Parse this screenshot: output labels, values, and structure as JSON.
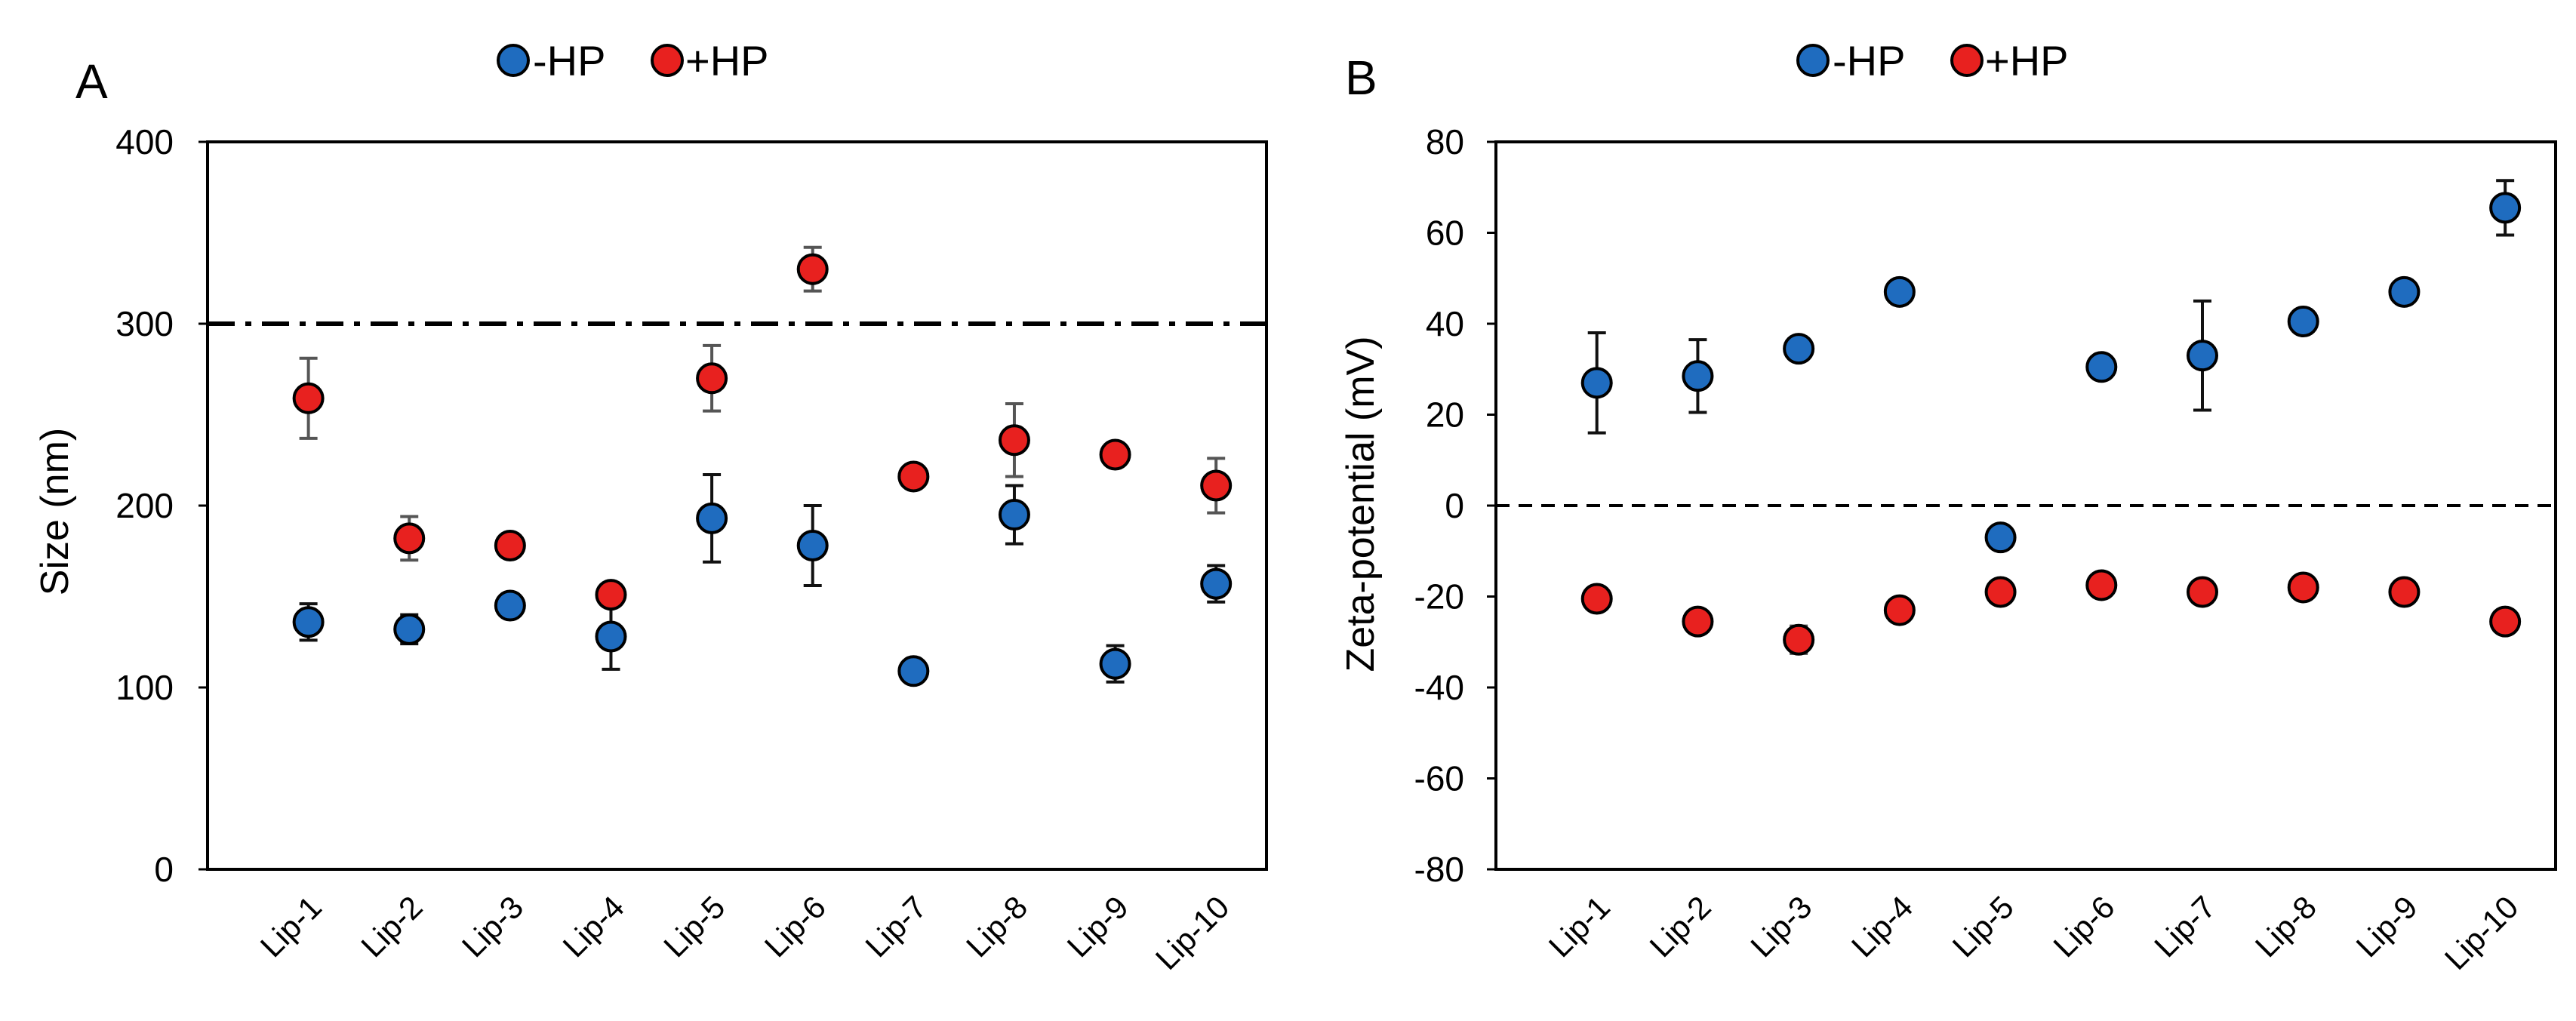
{
  "colors": {
    "minus_hp": "#1f6cbf",
    "plus_hp": "#e8211f",
    "marker_edge": "#000000",
    "error_minus": "#111111",
    "error_plus": "#555555"
  },
  "chart_data": [
    {
      "type": "scatter",
      "panel": "A",
      "title": "",
      "xlabel": "",
      "ylabel": "Size (nm)",
      "ylim": [
        0,
        400
      ],
      "yticks": [
        0,
        100,
        200,
        300,
        400
      ],
      "grid": false,
      "legend": {
        "placement": "top-center",
        "entries": [
          "-HP",
          "+HP"
        ]
      },
      "reference_line": {
        "value": 300,
        "style": "dash-dot"
      },
      "categories": [
        "Lip-1",
        "Lip-2",
        "Lip-3",
        "Lip-4",
        "Lip-5",
        "Lip-6",
        "Lip-7",
        "Lip-8",
        "Lip-9",
        "Lip-10"
      ],
      "series": [
        {
          "name": "-HP",
          "values": [
            136,
            132,
            145,
            128,
            193,
            178,
            109,
            195,
            113,
            157
          ],
          "errors": [
            10,
            8,
            0,
            18,
            24,
            22,
            0,
            16,
            10,
            10
          ]
        },
        {
          "name": "+HP",
          "values": [
            259,
            182,
            178,
            151,
            270,
            330,
            216,
            236,
            228,
            211
          ],
          "errors": [
            22,
            12,
            0,
            0,
            18,
            12,
            0,
            20,
            0,
            15
          ]
        }
      ]
    },
    {
      "type": "scatter",
      "panel": "B",
      "title": "",
      "xlabel": "",
      "ylabel": "Zeta-potential (mV)",
      "ylim": [
        -80,
        80
      ],
      "yticks": [
        -80,
        -60,
        -40,
        -20,
        0,
        20,
        40,
        60,
        80
      ],
      "grid": false,
      "legend": {
        "placement": "top-center",
        "entries": [
          "-HP",
          "+HP"
        ]
      },
      "reference_line": {
        "value": 0,
        "style": "dashed"
      },
      "categories": [
        "Lip-1",
        "Lip-2",
        "Lip-3",
        "Lip-4",
        "Lip-5",
        "Lip-6",
        "Lip-7",
        "Lip-8",
        "Lip-9",
        "Lip-10"
      ],
      "series": [
        {
          "name": "-HP",
          "values": [
            27,
            28.5,
            34.5,
            47,
            -7,
            30.5,
            33,
            40.5,
            47,
            65.5
          ],
          "errors": [
            11,
            8,
            0,
            0,
            0,
            0,
            12,
            0,
            0,
            6
          ]
        },
        {
          "name": "+HP",
          "values": [
            -20.5,
            -25.5,
            -29.5,
            -23,
            -19,
            -17.5,
            -19,
            -18,
            -19,
            -25.5
          ],
          "errors": [
            0,
            0,
            3,
            0,
            0,
            0,
            0,
            0,
            0,
            0
          ]
        }
      ]
    }
  ]
}
